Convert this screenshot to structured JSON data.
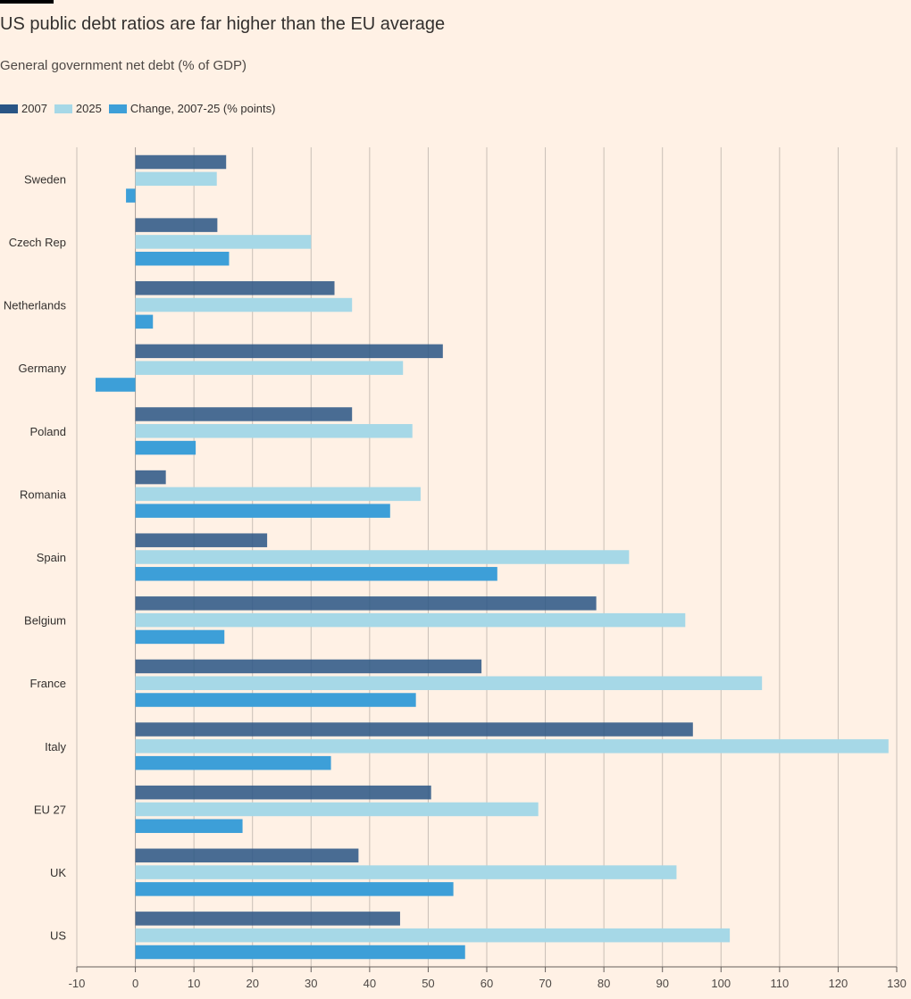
{
  "title": "US public debt ratios are far higher than the EU average",
  "subtitle": "General government net debt (% of GDP)",
  "colors": {
    "y2007": "#295585",
    "y2025": "#a6d8e7",
    "change": "#3d9fd8",
    "grid": "#c9bfb6",
    "axis": "#66605c",
    "background": "#fff1e5"
  },
  "chart_data": {
    "type": "bar",
    "orientation": "horizontal",
    "title": "US public debt ratios are far higher than the EU average",
    "subtitle": "General government net debt (% of GDP)",
    "categories": [
      "Sweden",
      "Czech Rep",
      "Netherlands",
      "Germany",
      "Poland",
      "Romania",
      "Spain",
      "Belgium",
      "France",
      "Italy",
      "EU 27",
      "UK",
      "US"
    ],
    "series": [
      {
        "name": "2007",
        "values": [
          15.5,
          14.0,
          34.0,
          52.5,
          37.0,
          5.2,
          22.5,
          78.7,
          59.1,
          95.2,
          50.5,
          38.1,
          45.2
        ]
      },
      {
        "name": "2025",
        "values": [
          13.9,
          30.0,
          37.0,
          45.7,
          47.3,
          48.7,
          84.3,
          93.9,
          107.0,
          128.6,
          68.8,
          92.4,
          101.5
        ]
      },
      {
        "name": "Change, 2007-25 (% points)",
        "values": [
          -1.6,
          16.0,
          3.0,
          -6.8,
          10.3,
          43.5,
          61.8,
          15.2,
          47.9,
          33.4,
          18.3,
          54.3,
          56.3
        ]
      }
    ],
    "xlim": [
      -10,
      130
    ],
    "xticks": [
      -10,
      0,
      10,
      20,
      30,
      40,
      50,
      60,
      70,
      80,
      90,
      100,
      110,
      120,
      130
    ],
    "grid": true,
    "legend_position": "top-left"
  }
}
